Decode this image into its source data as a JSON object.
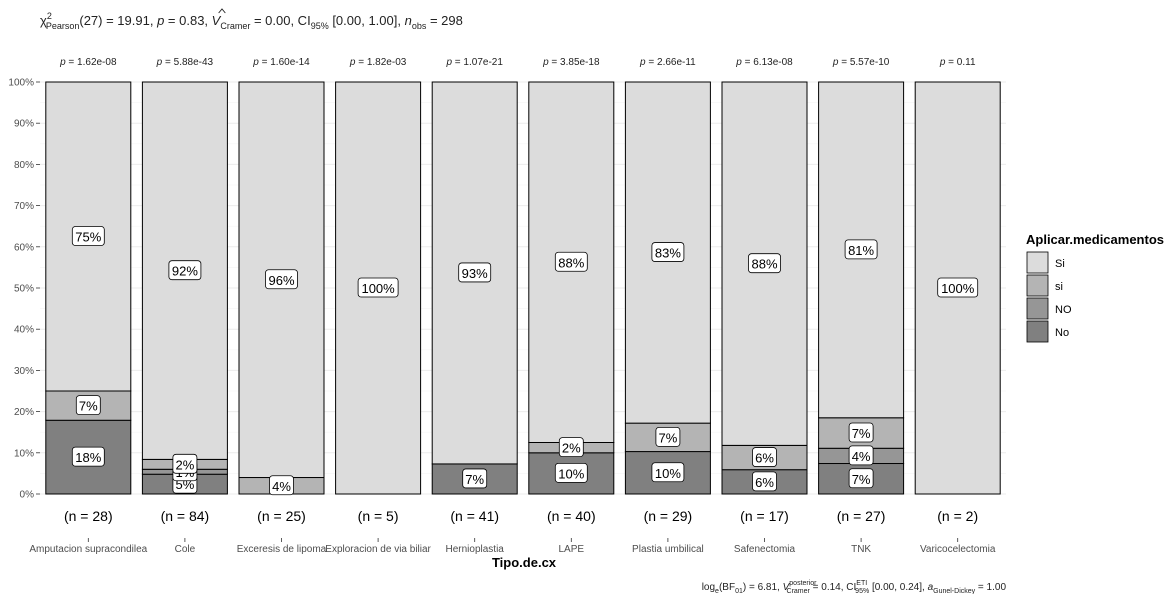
{
  "chart_data": {
    "type": "bar",
    "stacked": true,
    "percent": true,
    "title_parts": {
      "chi": "χ",
      "chi_sup": "2",
      "chi_sub": "Pearson",
      "df": "(27) = 19.91, ",
      "p": "p",
      "p_val": " = 0.83, ",
      "v": "V",
      "v_sub": "Cramer",
      "v_val": " = 0.00, CI",
      "ci_sub": "95%",
      "ci_val": " [0.00, 1.00], ",
      "n": "n",
      "n_sub": "obs",
      "n_val": " = 298"
    },
    "caption_parts": {
      "log": "log",
      "log_sub": "e",
      "bf": "(BF",
      "bf_sub": "01",
      "bf_val": ") = 6.81, ",
      "v": "V",
      "v_sup": "posterior",
      "v_sub": "Cramer",
      "v_val": " = 0.14, CI",
      "ci_sup": "ETI",
      "ci_sub": "95%",
      "ci_val": " [0.00, 0.24], ",
      "a": "a",
      "a_sub": "Gunel-Dickey",
      "a_val": " = 1.00"
    },
    "xlabel": "Tipo.de.cx",
    "ylabel": "",
    "ylim": [
      0,
      100
    ],
    "yticks": [
      "0%",
      "10%",
      "20%",
      "30%",
      "40%",
      "50%",
      "60%",
      "70%",
      "80%",
      "90%",
      "100%"
    ],
    "categories": [
      "Amputacion supracondilea",
      "Cole",
      "Exceresis de lipoma",
      "Exploracion de via biliar",
      "Hernioplastia",
      "LAPE",
      "Plastia umbilical",
      "Safenectomia",
      "TNK",
      "Varicocelectomia"
    ],
    "n_labels": [
      "(n = 28)",
      "(n = 84)",
      "(n = 25)",
      "(n = 5)",
      "(n = 41)",
      "(n = 40)",
      "(n = 29)",
      "(n = 17)",
      "(n = 27)",
      "(n = 2)"
    ],
    "p_labels": [
      "1.62e-08",
      "5.88e-43",
      "1.60e-14",
      "1.82e-03",
      "1.07e-21",
      "3.85e-18",
      "2.66e-11",
      "6.13e-08",
      "5.57e-10",
      "0.11"
    ],
    "p_prefix": "p = ",
    "legend": {
      "title": "Aplicar.medicamentos",
      "position": "right",
      "items": [
        "Si",
        "si",
        "NO",
        "No"
      ]
    },
    "series": [
      {
        "name": "No",
        "color": "#808080",
        "values": [
          17.9,
          4.8,
          0,
          0,
          7.3,
          10,
          10.3,
          5.9,
          7.4,
          0
        ]
      },
      {
        "name": "NO",
        "color": "#969696",
        "values": [
          0,
          1.2,
          0,
          0,
          0,
          0,
          0,
          0,
          3.7,
          0
        ]
      },
      {
        "name": "si",
        "color": "#b4b4b4",
        "values": [
          7.1,
          2.4,
          4,
          0,
          0,
          2.5,
          6.9,
          5.9,
          7.4,
          0
        ]
      },
      {
        "name": "Si",
        "color": "#dcdcdc",
        "values": [
          75,
          91.6,
          96,
          100,
          92.7,
          87.5,
          82.8,
          88.2,
          81.5,
          100
        ]
      }
    ],
    "labels": [
      {
        "series": "No",
        "values": [
          "18%",
          "5%",
          "",
          "",
          "7%",
          "10%",
          "10%",
          "6%",
          "7%",
          ""
        ]
      },
      {
        "series": "NO",
        "values": [
          "",
          "1%",
          "",
          "",
          "",
          "",
          "",
          "",
          "4%",
          ""
        ]
      },
      {
        "series": "si",
        "values": [
          "7%",
          "2%",
          "4%",
          "",
          "",
          "2%",
          "7%",
          "6%",
          "7%",
          ""
        ]
      },
      {
        "series": "Si",
        "values": [
          "75%",
          "92%",
          "96%",
          "100%",
          "93%",
          "88%",
          "83%",
          "88%",
          "81%",
          "100%"
        ]
      }
    ],
    "grid": true
  }
}
